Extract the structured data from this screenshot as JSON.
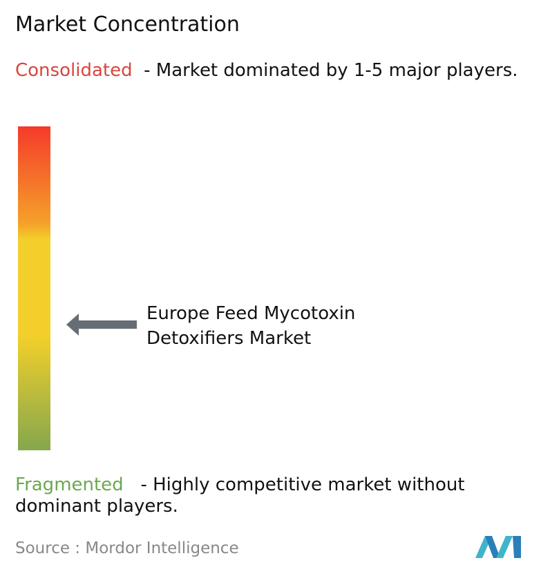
{
  "header": {
    "title": "Market Concentration"
  },
  "consolidated": {
    "label": "Consolidated",
    "description": "- Market dominated by 1-5 major players."
  },
  "marker": {
    "label": "Europe Feed Mycotoxin Detoxifiers Market"
  },
  "fragmented": {
    "label": "Fragmented",
    "description": "- Highly competitive market without dominant players."
  },
  "source": {
    "prefix": "Source :",
    "name": "Mordor Intelligence"
  }
}
